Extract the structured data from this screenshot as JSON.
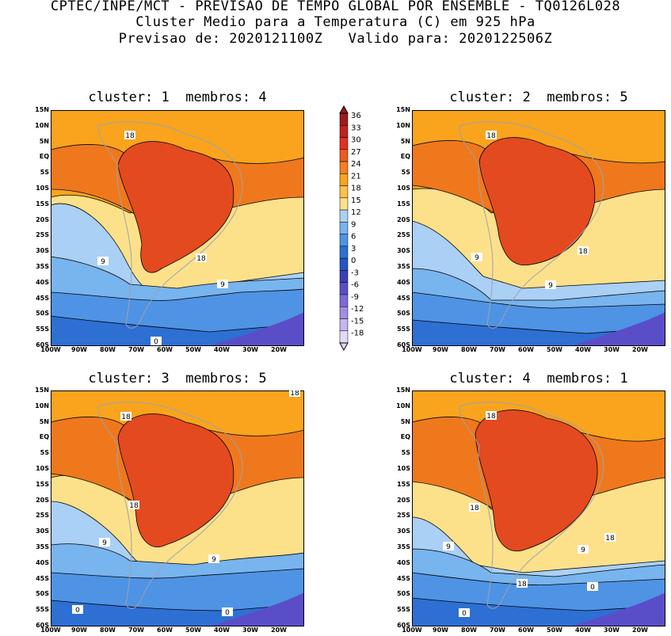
{
  "header": {
    "line1": "CPTEC/INPE/MCT - PREVISAO DE TEMPO GLOBAL POR ENSEMBLE - TQ0126L028",
    "line2": "Cluster Medio para a Temperatura (C) em 925 hPa",
    "line3": "Previsao de: 2020121100Z   Valido para: 2020122506Z"
  },
  "panels": [
    {
      "title": "cluster: 1  membros: 4",
      "contour_labels": [
        "18",
        "9",
        "18",
        "9",
        "0"
      ]
    },
    {
      "title": "cluster: 2  membros: 5",
      "contour_labels": [
        "18",
        "9",
        "18",
        "9"
      ]
    },
    {
      "title": "cluster: 3  membros: 5",
      "contour_labels": [
        "18",
        "18",
        "9",
        "9",
        "0",
        "0",
        "18"
      ]
    },
    {
      "title": "cluster: 4  membros: 1",
      "contour_labels": [
        "18",
        "18",
        "9",
        "9",
        "18",
        "18",
        "0",
        "0"
      ]
    }
  ],
  "axes": {
    "lat_labels": [
      "15N",
      "10N",
      "5N",
      "EQ",
      "5S",
      "10S",
      "15S",
      "20S",
      "25S",
      "30S",
      "35S",
      "40S",
      "45S",
      "50S",
      "55S",
      "60S"
    ],
    "lon_labels": [
      "100W",
      "90W",
      "80W",
      "70W",
      "60W",
      "50W",
      "40W",
      "30W",
      "20W"
    ]
  },
  "colorbar": {
    "labels": [
      "36",
      "33",
      "30",
      "27",
      "24",
      "21",
      "18",
      "15",
      "12",
      "9",
      "6",
      "3",
      "0",
      "-3",
      "-6",
      "-9",
      "-12",
      "-15",
      "-18"
    ],
    "colors": [
      "#9e1a1a",
      "#c42020",
      "#e03020",
      "#f05a20",
      "#f5801f",
      "#f9a41c",
      "#fcc050",
      "#fde08a",
      "#aad0f5",
      "#78b4ee",
      "#4f93e4",
      "#2e6fd4",
      "#2455c4",
      "#3a3fb8",
      "#5a4ec8",
      "#7d6ad8",
      "#a08ee4",
      "#c4b6f0",
      "#e2d8f8"
    ]
  }
}
